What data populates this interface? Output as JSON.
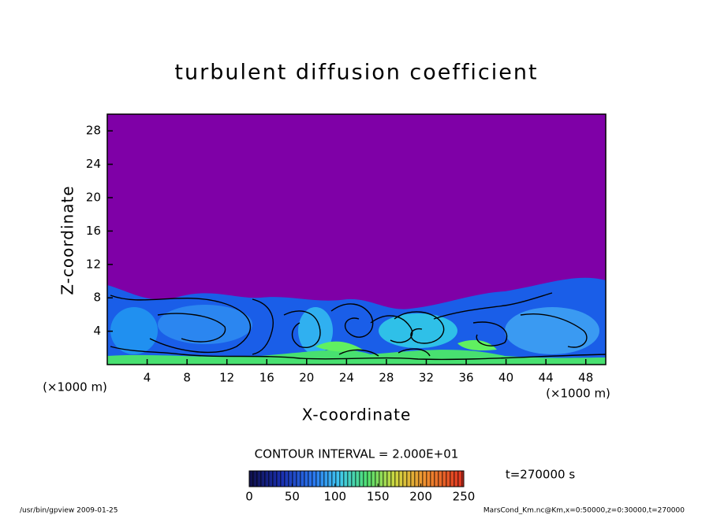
{
  "chart_data": {
    "type": "contour",
    "title": "turbulent diffusion coefficient",
    "x_label": "X-coordinate",
    "y_label": "Z-coordinate",
    "x_unit_label": "(×1000 m)",
    "y_unit_label": "(×1000 m)",
    "xlim": [
      0,
      50
    ],
    "xticks": [
      4,
      8,
      12,
      16,
      20,
      24,
      28,
      32,
      36,
      40,
      44,
      48
    ],
    "ylim": [
      0,
      30
    ],
    "yticks": [
      4,
      8,
      12,
      16,
      20,
      24,
      28
    ],
    "contour_interval_label": "CONTOUR INTERVAL = 2.000E+01",
    "colorbar_lim": [
      0,
      250
    ],
    "colorbar_ticks": [
      0,
      50,
      100,
      150,
      200,
      250
    ],
    "time_label": "t=270000 s",
    "footer_left": "/usr/bin/gpview  2009-01-25",
    "footer_right": "MarsCond_Km.nc@Km,x=0:50000,z=0:30000,t=270000"
  }
}
